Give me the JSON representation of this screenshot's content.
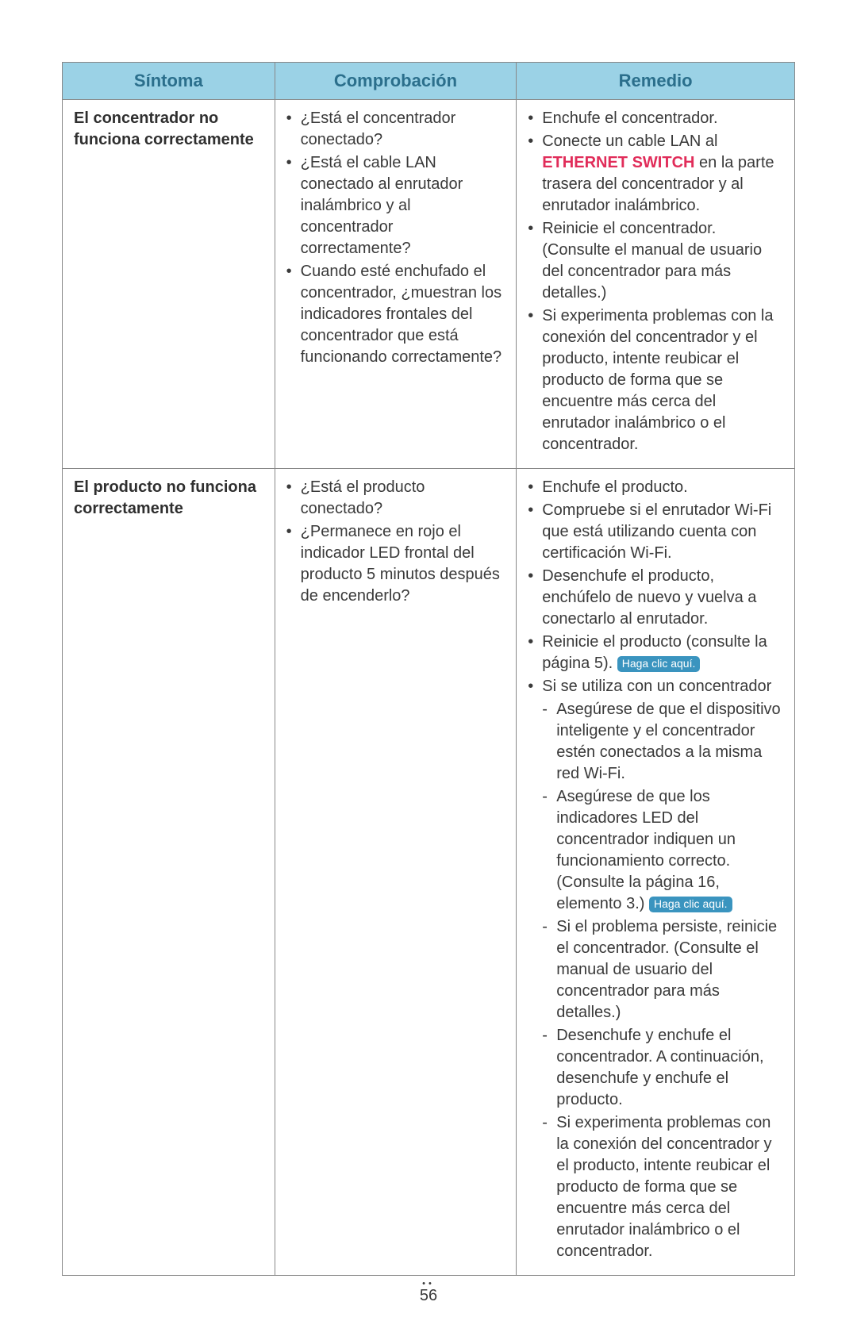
{
  "table": {
    "headers": {
      "sintoma": "Síntoma",
      "comprobacion": "Comprobación",
      "remedio": "Remedio"
    },
    "col_widths": [
      "29%",
      "33%",
      "38%"
    ],
    "header_bg": "#9bd2e6",
    "header_color": "#2b6f8c",
    "border_color": "#888888",
    "rows": [
      {
        "sintoma": "El concentrador no funciona correctamente",
        "comprobacion": [
          "¿Está el concentrador conectado?",
          "¿Está el cable LAN conectado al enrutador inalámbrico y al concentrador correctamente?",
          "Cuando esté enchufado el concentrador, ¿muestran los indicadores frontales del concentrador que está funcionando correctamente?"
        ],
        "remedio": {
          "items": [
            {
              "text": "Enchufe el concentrador."
            },
            {
              "html": "Conecte un cable LAN al <span class=\"ethernet\">ETHERNET SWITCH</span> en la parte trasera del concentrador y al enrutador inalámbrico."
            },
            {
              "text": "Reinicie el concentrador. (Consulte el manual de usuario del concentrador para más detalles.)"
            },
            {
              "text": "Si experimenta problemas con la conexión del concentrador y el producto, intente reubicar el producto de forma que se encuentre más cerca del enrutador inalámbrico o el concentrador."
            }
          ]
        }
      },
      {
        "sintoma": "El producto no funciona correctamente",
        "comprobacion": [
          "¿Está el producto conectado?",
          "¿Permanece en rojo el indicador LED frontal del producto 5 minutos después de encenderlo?"
        ],
        "remedio": {
          "items": [
            {
              "text": "Enchufe el producto."
            },
            {
              "text": "Compruebe si el enrutador Wi-Fi que está utilizando cuenta con certificación Wi-Fi."
            },
            {
              "text": "Desenchufe el producto, enchúfelo de nuevo y vuelva a conectarlo al enrutador."
            },
            {
              "html": "Reinicie el producto (consulte la página 5). <span class=\"tag\">Haga clic aquí.</span>"
            },
            {
              "text_pre": "Si se utiliza con un concentrador",
              "sub": [
                {
                  "text": "Asegúrese de que el dispositivo inteligente y el concentrador estén conectados a la misma red Wi-Fi."
                },
                {
                  "html": "Asegúrese de que los indicadores LED del concentrador indiquen un funcionamiento correcto. (Consulte la página 16, elemento 3.) <span class=\"tag\">Haga clic aquí.</span>"
                },
                {
                  "text": "Si el problema persiste, reinicie el concentrador. (Consulte el manual de usuario del concentrador para más detalles.)"
                },
                {
                  "text": "Desenchufe y enchufe el concentrador. A continuación, desenchufe y enchufe el producto."
                },
                {
                  "text": "Si experimenta problemas con la conexión del concentrador y el producto, intente reubicar el producto de forma que se encuentre más cerca del enrutador inalámbrico o el concentrador."
                }
              ]
            }
          ]
        }
      }
    ]
  },
  "ethernet_label": "ETHERNET SWITCH",
  "tag_label": "Haga clic aquí.",
  "tag_bg": "#3a94bf",
  "tag_color": "#ffffff",
  "ethernet_color": "#e12d5a",
  "page_number": "56"
}
